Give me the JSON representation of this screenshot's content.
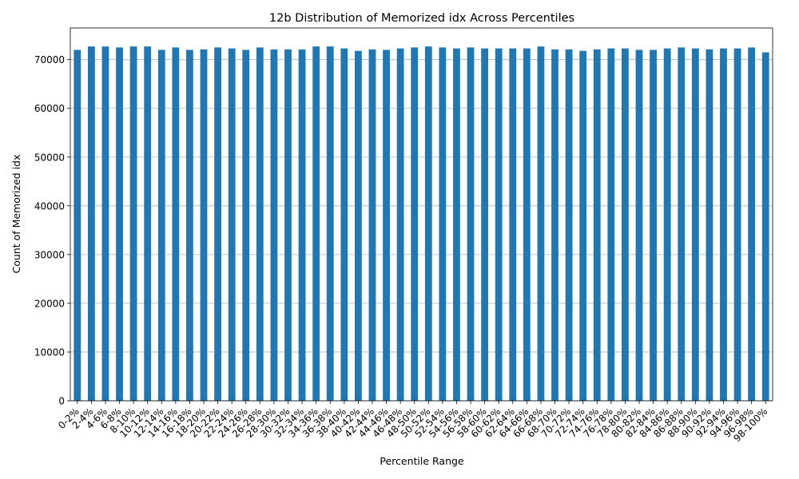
{
  "chart_data": {
    "type": "bar",
    "title": "12b Distribution of Memorized idx Across Percentiles",
    "xlabel": "Percentile Range",
    "ylabel": "Count of Memorized idx",
    "ylim": [
      0,
      76500
    ],
    "yticks": [
      0,
      10000,
      20000,
      30000,
      40000,
      50000,
      60000,
      70000
    ],
    "grid": "y-axis horizontal lines",
    "bar_color": "#1f77b4",
    "categories": [
      "0-2%",
      "2-4%",
      "4-6%",
      "6-8%",
      "8-10%",
      "10-12%",
      "12-14%",
      "14-16%",
      "16-18%",
      "18-20%",
      "20-22%",
      "22-24%",
      "24-26%",
      "26-28%",
      "28-30%",
      "30-32%",
      "32-34%",
      "34-36%",
      "36-38%",
      "38-40%",
      "40-42%",
      "42-44%",
      "44-46%",
      "46-48%",
      "48-50%",
      "50-52%",
      "52-54%",
      "54-56%",
      "56-58%",
      "58-60%",
      "60-62%",
      "62-64%",
      "64-66%",
      "66-68%",
      "68-70%",
      "70-72%",
      "72-74%",
      "74-76%",
      "76-78%",
      "78-80%",
      "80-82%",
      "82-84%",
      "84-86%",
      "86-88%",
      "88-90%",
      "90-92%",
      "92-94%",
      "94-96%",
      "96-98%",
      "98-100%"
    ],
    "values": [
      72000,
      72700,
      72700,
      72500,
      72700,
      72700,
      72000,
      72500,
      72000,
      72100,
      72500,
      72300,
      72000,
      72500,
      72100,
      72100,
      72100,
      72700,
      72700,
      72300,
      71800,
      72100,
      72000,
      72300,
      72500,
      72700,
      72500,
      72300,
      72500,
      72300,
      72300,
      72300,
      72300,
      72700,
      72100,
      72100,
      71800,
      72100,
      72300,
      72300,
      72000,
      72000,
      72300,
      72500,
      72300,
      72100,
      72300,
      72300,
      72500,
      71500
    ]
  }
}
